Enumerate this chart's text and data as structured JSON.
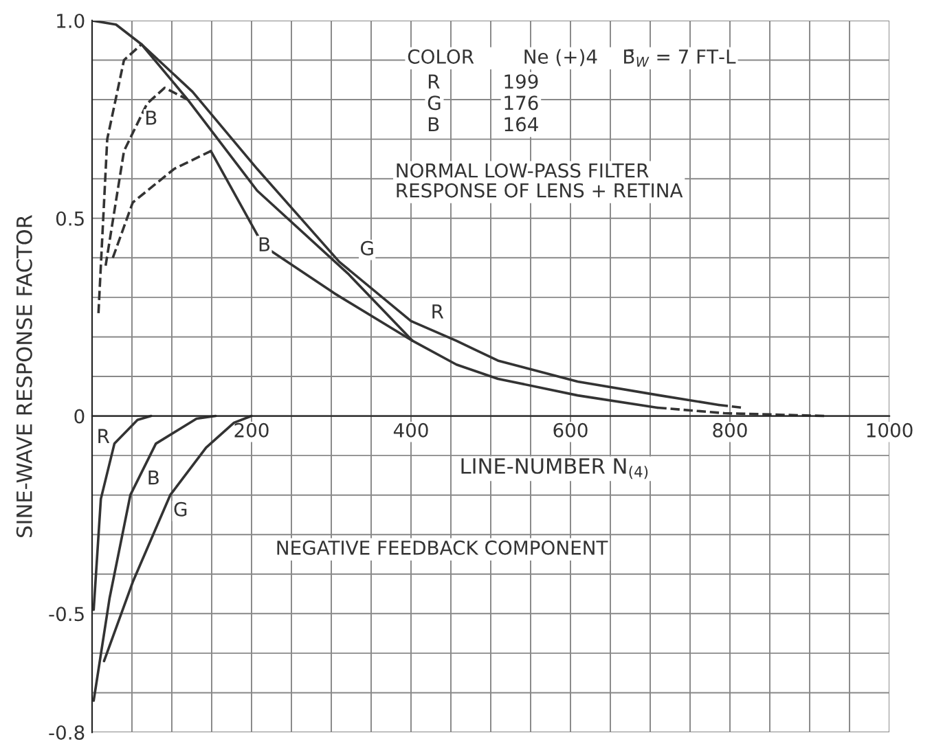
{
  "chart_data": {
    "type": "line",
    "xlabel": "LINE-NUMBER N$_{(4)}$",
    "ylabel": "SINE-WAVE RESPONSE FACTOR",
    "xlim": [
      0,
      1000
    ],
    "ylim": [
      -0.8,
      1.0
    ],
    "xticks": [
      {
        "value": 0,
        "label": null
      },
      {
        "value": 50,
        "label": null
      },
      {
        "value": 100,
        "label": null
      },
      {
        "value": 150,
        "label": null
      },
      200,
      {
        "value": 250,
        "label": null
      },
      {
        "value": 300,
        "label": null
      },
      {
        "value": 350,
        "label": null
      },
      400,
      {
        "value": 450,
        "label": null
      },
      {
        "value": 500,
        "label": null
      },
      {
        "value": 550,
        "label": null
      },
      600,
      {
        "value": 650,
        "label": null
      },
      {
        "value": 700,
        "label": null
      },
      {
        "value": 750,
        "label": null
      },
      800,
      {
        "value": 850,
        "label": null
      },
      {
        "value": 900,
        "label": null
      },
      {
        "value": 950,
        "label": null
      },
      1000
    ],
    "yticks": [
      {
        "value": -0.8,
        "label": "-0.8"
      },
      {
        "value": -0.7,
        "label": null
      },
      {
        "value": -0.6,
        "label": null
      },
      {
        "value": -0.5,
        "label": "-0.5"
      },
      {
        "value": -0.4,
        "label": null
      },
      {
        "value": -0.3,
        "label": null
      },
      {
        "value": -0.2,
        "label": null
      },
      {
        "value": -0.1,
        "label": null
      },
      0,
      {
        "value": 0.1,
        "label": null
      },
      {
        "value": 0.2,
        "label": null
      },
      {
        "value": 0.3,
        "label": null
      },
      {
        "value": 0.4,
        "label": null
      },
      0.5,
      {
        "value": 0.6,
        "label": null
      },
      {
        "value": 0.7,
        "label": null
      },
      {
        "value": 0.8,
        "label": null
      },
      {
        "value": 0.9,
        "label": null
      },
      {
        "value": 1.0,
        "label": "1.0"
      }
    ],
    "grid": true,
    "series": [
      {
        "color": "#333333",
        "line_style": "solid",
        "x": [
          0,
          30,
          62,
          126,
          207,
          310,
          400,
          457,
          509,
          609,
          712,
          786
        ],
        "values": [
          1.0,
          0.99,
          0.94,
          0.82,
          0.625,
          0.39,
          0.24,
          0.19,
          0.14,
          0.087,
          0.052,
          0.028
        ]
      },
      {
        "color": "#333333",
        "line_style": "dashed",
        "x": [
          786,
          815
        ],
        "values": [
          0.028,
          0.021
        ]
      },
      {
        "color": "#333333",
        "line_style": "solid",
        "x": [
          62,
          120,
          207,
          321,
          402,
          457,
          509,
          609,
          709
        ],
        "values": [
          0.94,
          0.8,
          0.57,
          0.36,
          0.19,
          0.13,
          0.094,
          0.052,
          0.021
        ]
      },
      {
        "color": "#333333",
        "line_style": "solid",
        "x": [
          149,
          215,
          304,
          402
        ],
        "values": [
          0.67,
          0.43,
          0.31,
          0.19
        ]
      },
      {
        "color": "#333333",
        "line_style": "dashed",
        "x": [
          709,
          793,
          919
        ],
        "values": [
          0.021,
          0.007,
          0
        ]
      },
      {
        "color": "#333333",
        "line_style": "dashed",
        "x": [
          8,
          19,
          40,
          62
        ],
        "values": [
          0.26,
          0.7,
          0.9,
          0.94
        ]
      },
      {
        "color": "#333333",
        "line_style": "dashed",
        "x": [
          17,
          40,
          69,
          91,
          120
        ],
        "values": [
          0.38,
          0.67,
          0.79,
          0.83,
          0.8
        ]
      },
      {
        "color": "#333333",
        "line_style": "dashed",
        "x": [
          26,
          51,
          103,
          149
        ],
        "values": [
          0.4,
          0.54,
          0.625,
          0.67
        ]
      },
      {
        "color": "#333333",
        "line_style": "solid",
        "x": [
          2,
          11,
          28,
          57,
          74
        ],
        "values": [
          -0.49,
          -0.21,
          -0.07,
          -0.01,
          0
        ]
      },
      {
        "color": "#333333",
        "line_style": "solid",
        "x": [
          2,
          22,
          48,
          80,
          131,
          155
        ],
        "values": [
          -0.72,
          -0.46,
          -0.2,
          -0.07,
          -0.007,
          0
        ]
      },
      {
        "color": "#333333",
        "line_style": "solid",
        "x": [
          15,
          51,
          98,
          143,
          178,
          200
        ],
        "values": [
          -0.62,
          -0.42,
          -0.2,
          -0.08,
          -0.017,
          0
        ]
      }
    ],
    "annotations": [
      "COLOR        Ne (+)4    B̄$_{W}$ = 7 FT-L",
      "R",
      "G",
      "B",
      "199",
      "176",
      "164",
      "NORMAL LOW-PASS FILTER\nRESPONSE OF LENS + RETINA",
      "NEGATIVE FEEDBACK COMPONENT",
      {
        "text": "B",
        "x": 74,
        "y": 0.75
      },
      {
        "text": "B",
        "x": 216,
        "y": 0.43
      },
      {
        "text": "G",
        "x": 345,
        "y": 0.42
      },
      {
        "text": "R",
        "x": 433,
        "y": 0.26
      },
      {
        "text": "R",
        "x": 14,
        "y": -0.055
      },
      {
        "text": "B",
        "x": 77,
        "y": -0.16
      },
      {
        "text": "G",
        "x": 111,
        "y": -0.24
      }
    ]
  }
}
